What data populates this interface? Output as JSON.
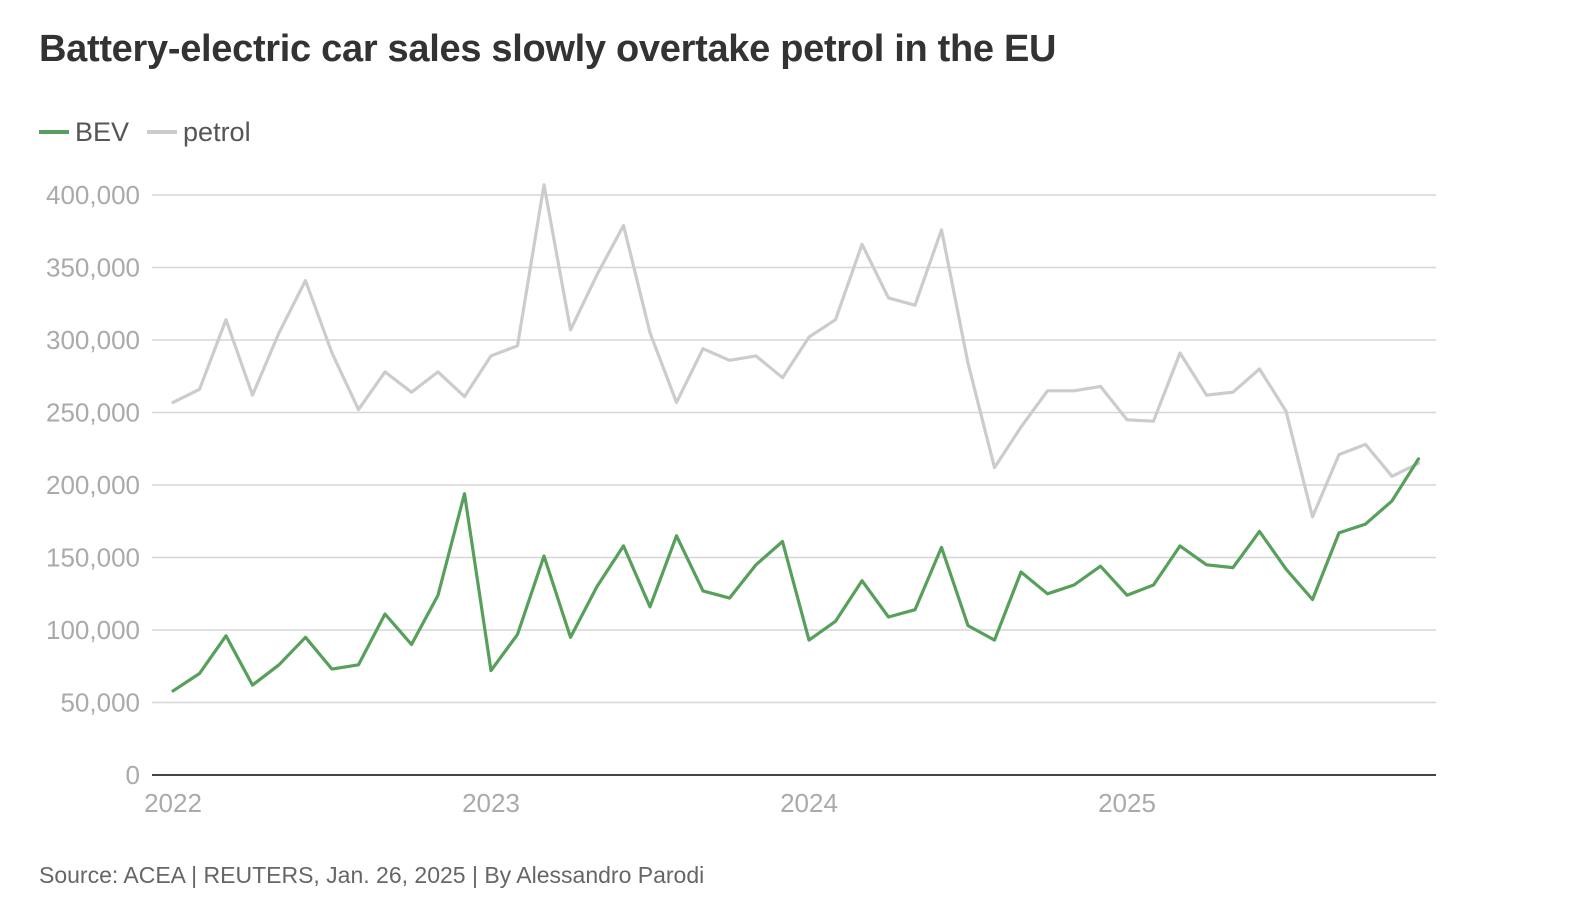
{
  "title": "Battery-electric car sales slowly overtake petrol in the EU",
  "source": "Source: ACEA | REUTERS, Jan. 26, 2025 | By Alessandro Parodi",
  "chart_data": {
    "type": "line",
    "title": "Battery-electric car sales slowly overtake petrol in the EU",
    "xlabel": "",
    "ylabel": "",
    "ylim": [
      0,
      400000
    ],
    "yticks": [
      0,
      50000,
      100000,
      150000,
      200000,
      250000,
      300000,
      350000,
      400000
    ],
    "ytick_labels": [
      "0",
      "50,000",
      "100,000",
      "150,000",
      "200,000",
      "250,000",
      "300,000",
      "350,000",
      "400,000"
    ],
    "x_tick_labels": [
      "2022",
      "2023",
      "2024",
      "2025"
    ],
    "x_tick_index": [
      0,
      12,
      24,
      36
    ],
    "grid": true,
    "legend_position": "top-left",
    "series": [
      {
        "name": "BEV",
        "color": "#56a05b",
        "values": [
          58000,
          70000,
          96000,
          62000,
          76000,
          95000,
          73000,
          76000,
          111000,
          90000,
          124000,
          194000,
          72000,
          97000,
          151000,
          95000,
          130000,
          158000,
          116000,
          165000,
          127000,
          122000,
          145000,
          161000,
          93000,
          106000,
          134000,
          109000,
          114000,
          157000,
          103000,
          93000,
          140000,
          125000,
          131000,
          144000,
          124000,
          131000,
          158000,
          145000,
          143000,
          168000,
          142000,
          121000,
          167000,
          173000,
          189000,
          218000
        ]
      },
      {
        "name": "petrol",
        "color": "#cccccc",
        "values": [
          257000,
          266000,
          314000,
          262000,
          305000,
          341000,
          291000,
          252000,
          278000,
          264000,
          278000,
          261000,
          289000,
          296000,
          407000,
          307000,
          345000,
          379000,
          305000,
          257000,
          294000,
          286000,
          289000,
          274000,
          302000,
          314000,
          366000,
          329000,
          324000,
          376000,
          284000,
          212000,
          240000,
          265000,
          265000,
          268000,
          245000,
          244000,
          291000,
          262000,
          264000,
          280000,
          251000,
          178000,
          221000,
          228000,
          206000,
          215000
        ]
      }
    ]
  }
}
